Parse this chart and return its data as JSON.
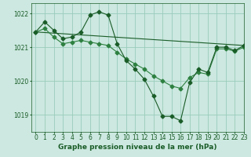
{
  "title": "Graphe pression niveau de la mer (hPa)",
  "bg_color": "#cce8e0",
  "grid_color": "#99ccbb",
  "line_color_main": "#1a5c28",
  "line_color_light": "#2d8040",
  "xlim": [
    -0.5,
    23
  ],
  "ylim": [
    1018.5,
    1022.3
  ],
  "yticks": [
    1019,
    1020,
    1021,
    1022
  ],
  "xticks": [
    0,
    1,
    2,
    3,
    4,
    5,
    6,
    7,
    8,
    9,
    10,
    11,
    12,
    13,
    14,
    15,
    16,
    17,
    18,
    19,
    20,
    21,
    22,
    23
  ],
  "series1_x": [
    0,
    1,
    2,
    3,
    4,
    5,
    6,
    7,
    8,
    9,
    10,
    11,
    12,
    13,
    14,
    15,
    16,
    17,
    18,
    19,
    20,
    21,
    22,
    23
  ],
  "series1_y": [
    1021.45,
    1021.75,
    1021.5,
    1021.25,
    1021.3,
    1021.45,
    1021.95,
    1022.05,
    1021.95,
    1021.1,
    1020.6,
    1020.35,
    1020.05,
    1019.55,
    1018.95,
    1018.95,
    1018.82,
    1019.95,
    1020.35,
    1020.25,
    1021.0,
    1021.0,
    1020.9,
    1021.05
  ],
  "series2_x": [
    0,
    1,
    2,
    3,
    4,
    5,
    6,
    7,
    8,
    9,
    10,
    11,
    12,
    13,
    14,
    15,
    16,
    17,
    18,
    19,
    20,
    21,
    22,
    23
  ],
  "series2_y": [
    1021.45,
    1021.55,
    1021.3,
    1021.1,
    1021.15,
    1021.2,
    1021.15,
    1021.1,
    1021.05,
    1020.85,
    1020.65,
    1020.5,
    1020.35,
    1020.15,
    1020.0,
    1019.85,
    1019.78,
    1020.1,
    1020.25,
    1020.2,
    1020.95,
    1020.95,
    1020.88,
    1021.0
  ],
  "series3_x": [
    0,
    23
  ],
  "series3_y": [
    1021.45,
    1021.05
  ],
  "marker_size": 2.5,
  "marker_style": "D",
  "tick_fontsize": 5.5,
  "title_fontsize": 6.5
}
